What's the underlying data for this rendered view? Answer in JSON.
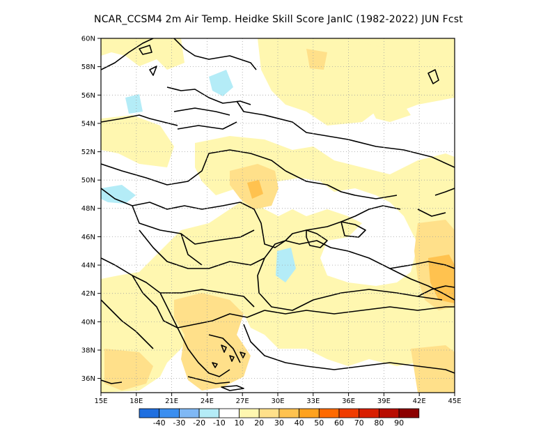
{
  "title": "NCAR_CCSM4  2m Air Temp. Heidke Skill Score JanIC (1982-2022) JUN Fcst",
  "map": {
    "lon_range": [
      15,
      45
    ],
    "lat_range": [
      35,
      60
    ],
    "lon_ticks": [
      "15E",
      "18E",
      "21E",
      "24E",
      "27E",
      "30E",
      "33E",
      "36E",
      "39E",
      "42E",
      "45E"
    ],
    "lat_ticks": [
      "36N",
      "38N",
      "40N",
      "42N",
      "44N",
      "46N",
      "48N",
      "50N",
      "52N",
      "54N",
      "56N",
      "58N",
      "60N"
    ],
    "grid": "dotted"
  },
  "colorbar": {
    "labels": [
      "-40",
      "-30",
      "-20",
      "-10",
      "10",
      "20",
      "30",
      "40",
      "50",
      "60",
      "70",
      "80",
      "90"
    ],
    "colors": [
      "#1f6fe0",
      "#3a8ef0",
      "#7fb8f5",
      "#b4ecf7",
      "#ffffff",
      "#fff7b0",
      "#ffe08a",
      "#ffc24f",
      "#ffa21e",
      "#ff6a00",
      "#f03c00",
      "#d81e00",
      "#b80c00",
      "#8c0000"
    ]
  }
}
